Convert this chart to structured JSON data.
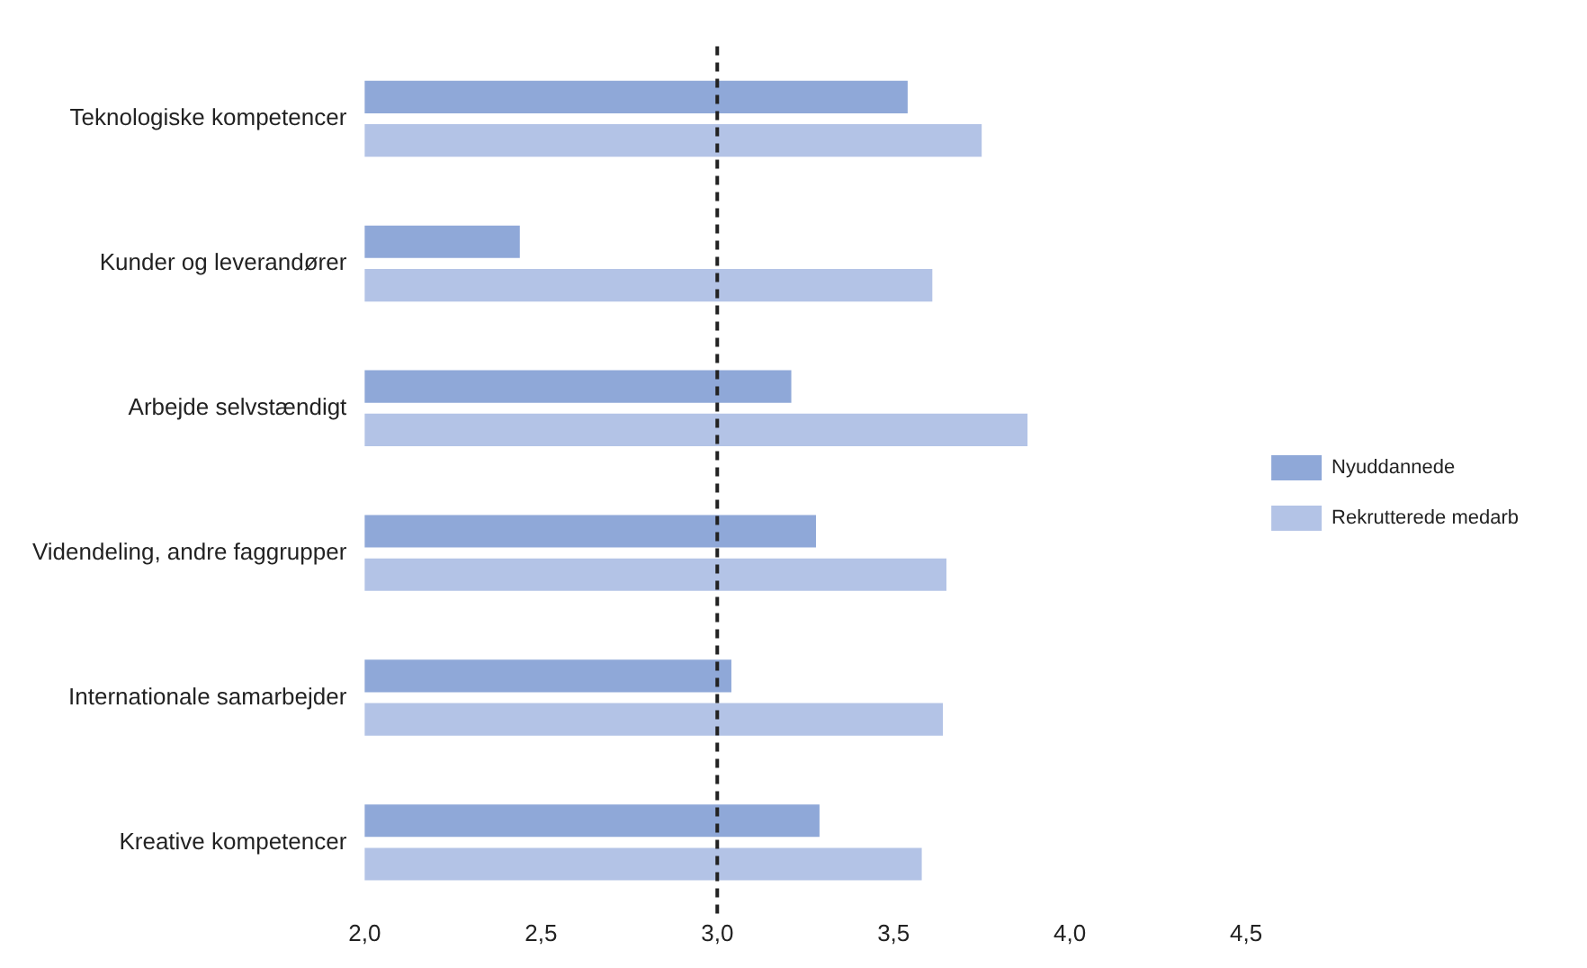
{
  "chart_data": {
    "type": "bar",
    "orientation": "horizontal",
    "categories": [
      "Teknologiske kompetencer",
      "Kunder og leverandører",
      "Arbejde selvstændigt",
      "Videndeling, andre faggrupper",
      "Internationale samarbejder",
      "Kreative kompetencer"
    ],
    "series": [
      {
        "name": "Nyuddannede",
        "color": "#8fa8d8",
        "values": [
          3.54,
          2.44,
          3.21,
          3.28,
          3.04,
          3.29
        ]
      },
      {
        "name": "Rekrutterede medarb",
        "color": "#b3c3e6",
        "values": [
          3.75,
          3.61,
          3.88,
          3.65,
          3.64,
          3.58
        ]
      }
    ],
    "xlim": [
      2,
      4.5
    ],
    "xticks": [
      {
        "value": 2,
        "label": "2,0"
      },
      {
        "value": 2.5,
        "label": "2,5"
      },
      {
        "value": 3,
        "label": "3,0"
      },
      {
        "value": 3.5,
        "label": "3,5"
      },
      {
        "value": 4,
        "label": "4,0"
      },
      {
        "value": 4.5,
        "label": "4,5"
      }
    ],
    "ref_lines": [
      {
        "axis": "x",
        "value": 3,
        "color": "#222222",
        "line_style": "dashed"
      }
    ],
    "grid": false,
    "legend": "right"
  }
}
